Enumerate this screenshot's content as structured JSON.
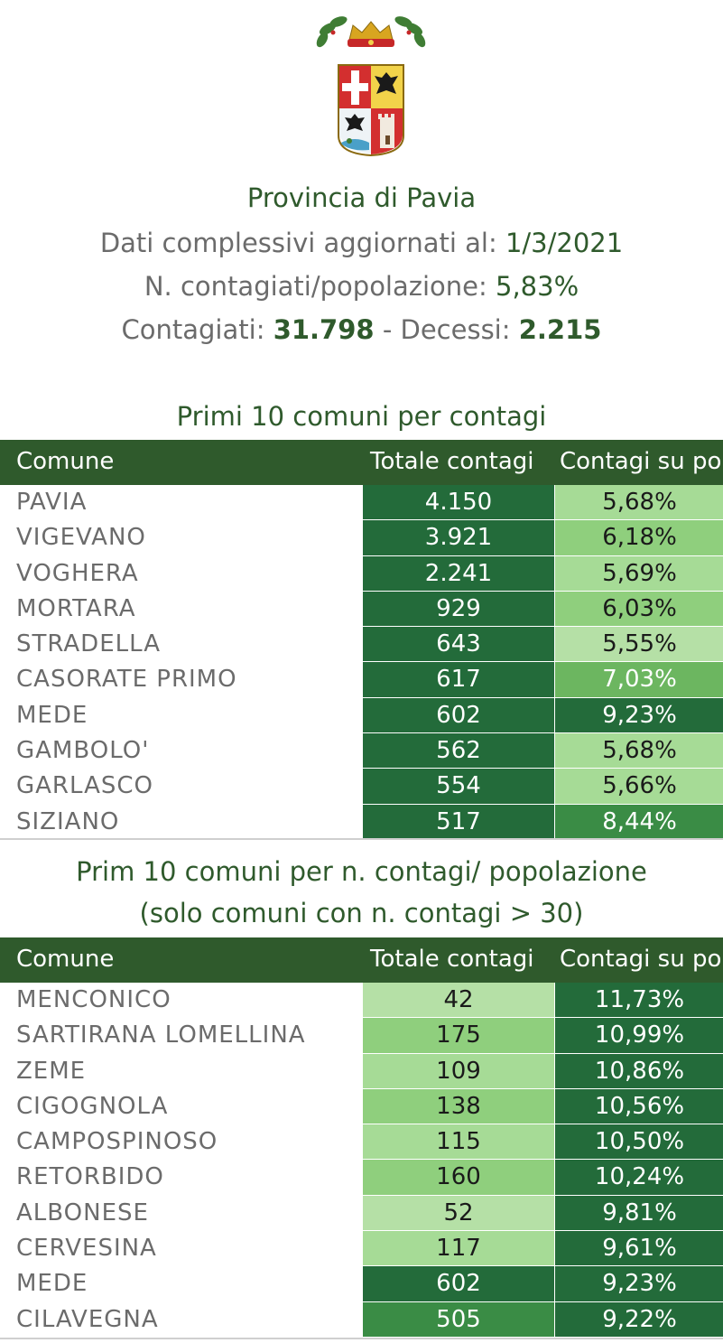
{
  "header": {
    "title": "Provincia di Pavia",
    "updated_label": "Dati complessivi aggiornati al:",
    "updated_value": "1/3/2021",
    "ratio_label": "N. contagiati/popolazione:",
    "ratio_value": "5,83%",
    "cases_label": "Contagiati:",
    "cases_value": "31.798",
    "deaths_label": "- Decessi:",
    "deaths_value": "2.215"
  },
  "table1": {
    "title": "Primi 10 comuni per contagi",
    "columns": [
      "Comune",
      "Totale contagi",
      "Contagi su po"
    ],
    "rows": [
      {
        "comune": "PAVIA",
        "totale": "4.150",
        "pct": "5,68%"
      },
      {
        "comune": "VIGEVANO",
        "totale": "3.921",
        "pct": "6,18%"
      },
      {
        "comune": "VOGHERA",
        "totale": "2.241",
        "pct": "5,69%"
      },
      {
        "comune": "MORTARA",
        "totale": "929",
        "pct": "6,03%"
      },
      {
        "comune": "STRADELLA",
        "totale": "643",
        "pct": "5,55%"
      },
      {
        "comune": "CASORATE PRIMO",
        "totale": "617",
        "pct": "7,03%"
      },
      {
        "comune": "MEDE",
        "totale": "602",
        "pct": "9,23%"
      },
      {
        "comune": "GAMBOLO'",
        "totale": "562",
        "pct": "5,68%"
      },
      {
        "comune": "GARLASCO",
        "totale": "554",
        "pct": "5,66%"
      },
      {
        "comune": "SIZIANO",
        "totale": "517",
        "pct": "8,44%"
      }
    ]
  },
  "table2": {
    "title": "Prim 10 comuni per n. contagi/ popolazione",
    "subtitle": "(solo comuni con n. contagi > 30)",
    "columns": [
      "Comune",
      "Totale contagi",
      "Contagi su po"
    ],
    "rows": [
      {
        "comune": "MENCONICO",
        "totale": "42",
        "pct": "11,73%"
      },
      {
        "comune": "SARTIRANA LOMELLINA",
        "totale": "175",
        "pct": "10,99%"
      },
      {
        "comune": "ZEME",
        "totale": "109",
        "pct": "10,86%"
      },
      {
        "comune": "CIGOGNOLA",
        "totale": "138",
        "pct": "10,56%"
      },
      {
        "comune": "CAMPOSPINOSO",
        "totale": "115",
        "pct": "10,50%"
      },
      {
        "comune": "RETORBIDO",
        "totale": "160",
        "pct": "10,24%"
      },
      {
        "comune": "ALBONESE",
        "totale": "52",
        "pct": "9,81%"
      },
      {
        "comune": "CERVESINA",
        "totale": "117",
        "pct": "9,61%"
      },
      {
        "comune": "MEDE",
        "totale": "602",
        "pct": "9,23%"
      },
      {
        "comune": "CILAVEGNA",
        "totale": "505",
        "pct": "9,22%"
      }
    ]
  },
  "colors": {
    "header_green": "#2f5a2c",
    "scale": [
      "#b5e0a6",
      "#a6db96",
      "#8fcf7d",
      "#6cb660",
      "#3a8c45",
      "#236b3a"
    ]
  }
}
